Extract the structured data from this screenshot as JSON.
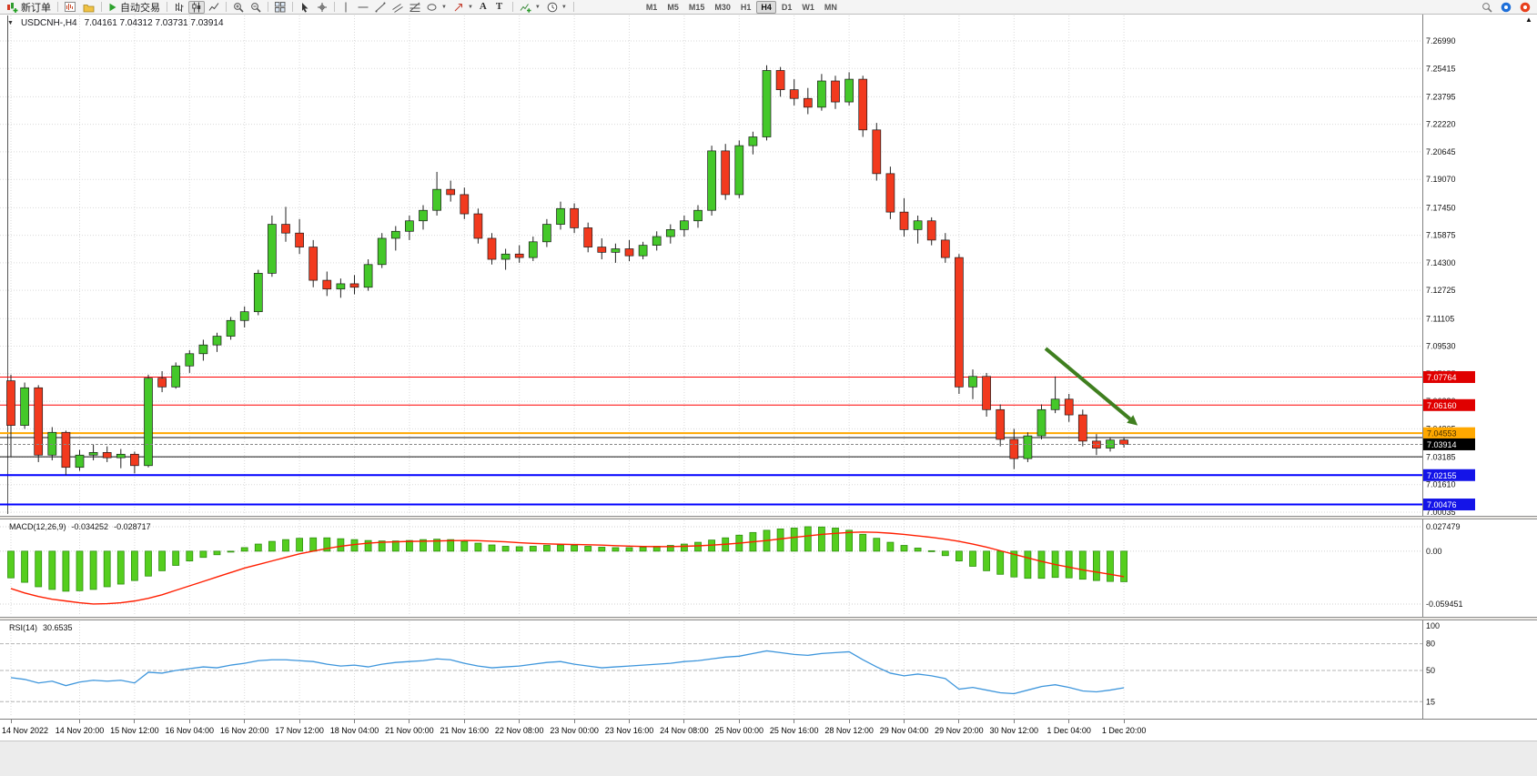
{
  "toolbar": {
    "new_order_label": "新订单",
    "autotrading_label": "自动交易",
    "text_tool_label": "A",
    "label_tool_label": "T",
    "timeframes": [
      "M1",
      "M5",
      "M15",
      "M30",
      "H1",
      "H4",
      "D1",
      "W1",
      "MN"
    ],
    "active_timeframe": "H4"
  },
  "chart": {
    "title": "USDCNH-,H4",
    "ohlc": "7.04161 7.04312 7.03731 7.03914"
  },
  "indicators": {
    "macd": {
      "label": "MACD(12,26,9)",
      "value_main": "-0.034252",
      "value_signal": "-0.028717"
    },
    "rsi": {
      "label": "RSI(14)",
      "value": "30.6535"
    }
  },
  "chart_data": {
    "type": "candlestick",
    "symbol": "USDCNH-",
    "timeframe": "H4",
    "ohlc_current": {
      "open": 7.04161,
      "high": 7.04312,
      "low": 7.03731,
      "close": 7.03914
    },
    "price_axis_labels": [
      "7.26990",
      "7.25415",
      "7.23795",
      "7.22220",
      "7.20645",
      "7.19070",
      "7.17450",
      "7.15875",
      "7.14300",
      "7.12725",
      "7.11105",
      "7.09530",
      "7.07955",
      "7.06380",
      "7.04805",
      "7.03185",
      "7.01610",
      "7.00035"
    ],
    "candles": [
      [
        7.0755,
        7.079,
        7.032,
        7.05
      ],
      [
        7.05,
        7.0745,
        7.048,
        7.0715
      ],
      [
        7.0715,
        7.073,
        7.029,
        7.033
      ],
      [
        7.033,
        7.049,
        7.03,
        7.046
      ],
      [
        7.046,
        7.047,
        7.0215,
        7.026
      ],
      [
        7.026,
        7.036,
        7.024,
        7.033
      ],
      [
        7.033,
        7.039,
        7.03,
        7.0345
      ],
      [
        7.0345,
        7.038,
        7.029,
        7.0315
      ],
      [
        7.0315,
        7.0365,
        7.0255,
        7.0335
      ],
      [
        7.0335,
        7.035,
        7.0225,
        7.027
      ],
      [
        7.027,
        7.079,
        7.026,
        7.077
      ],
      [
        7.077,
        7.081,
        7.069,
        7.072
      ],
      [
        7.072,
        7.086,
        7.071,
        7.084
      ],
      [
        7.084,
        7.093,
        7.08,
        7.091
      ],
      [
        7.091,
        7.099,
        7.087,
        7.096
      ],
      [
        7.096,
        7.103,
        7.092,
        7.101
      ],
      [
        7.101,
        7.112,
        7.099,
        7.11
      ],
      [
        7.11,
        7.118,
        7.106,
        7.115
      ],
      [
        7.115,
        7.139,
        7.113,
        7.137
      ],
      [
        7.137,
        7.17,
        7.135,
        7.165
      ],
      [
        7.165,
        7.175,
        7.155,
        7.16
      ],
      [
        7.16,
        7.168,
        7.148,
        7.152
      ],
      [
        7.152,
        7.156,
        7.129,
        7.133
      ],
      [
        7.133,
        7.138,
        7.124,
        7.128
      ],
      [
        7.128,
        7.134,
        7.123,
        7.131
      ],
      [
        7.131,
        7.136,
        7.125,
        7.129
      ],
      [
        7.129,
        7.145,
        7.127,
        7.142
      ],
      [
        7.142,
        7.16,
        7.14,
        7.157
      ],
      [
        7.157,
        7.164,
        7.15,
        7.161
      ],
      [
        7.161,
        7.17,
        7.156,
        7.167
      ],
      [
        7.167,
        7.176,
        7.162,
        7.173
      ],
      [
        7.173,
        7.195,
        7.17,
        7.185
      ],
      [
        7.185,
        7.19,
        7.178,
        7.182
      ],
      [
        7.182,
        7.186,
        7.168,
        7.171
      ],
      [
        7.171,
        7.174,
        7.154,
        7.157
      ],
      [
        7.157,
        7.16,
        7.142,
        7.145
      ],
      [
        7.145,
        7.151,
        7.139,
        7.148
      ],
      [
        7.148,
        7.153,
        7.143,
        7.146
      ],
      [
        7.146,
        7.158,
        7.144,
        7.155
      ],
      [
        7.155,
        7.168,
        7.152,
        7.165
      ],
      [
        7.165,
        7.178,
        7.162,
        7.174
      ],
      [
        7.174,
        7.177,
        7.16,
        7.163
      ],
      [
        7.163,
        7.166,
        7.149,
        7.152
      ],
      [
        7.152,
        7.157,
        7.145,
        7.149
      ],
      [
        7.149,
        7.154,
        7.143,
        7.151
      ],
      [
        7.151,
        7.156,
        7.144,
        7.147
      ],
      [
        7.147,
        7.155,
        7.145,
        7.153
      ],
      [
        7.153,
        7.161,
        7.15,
        7.158
      ],
      [
        7.158,
        7.165,
        7.154,
        7.162
      ],
      [
        7.162,
        7.17,
        7.158,
        7.167
      ],
      [
        7.167,
        7.176,
        7.163,
        7.173
      ],
      [
        7.173,
        7.21,
        7.17,
        7.207
      ],
      [
        7.207,
        7.211,
        7.179,
        7.182
      ],
      [
        7.182,
        7.213,
        7.18,
        7.21
      ],
      [
        7.21,
        7.218,
        7.205,
        7.215
      ],
      [
        7.215,
        7.256,
        7.213,
        7.253
      ],
      [
        7.253,
        7.255,
        7.238,
        7.242
      ],
      [
        7.242,
        7.248,
        7.233,
        7.237
      ],
      [
        7.237,
        7.243,
        7.228,
        7.232
      ],
      [
        7.232,
        7.251,
        7.23,
        7.247
      ],
      [
        7.247,
        7.25,
        7.231,
        7.235
      ],
      [
        7.235,
        7.252,
        7.233,
        7.248
      ],
      [
        7.248,
        7.25,
        7.215,
        7.219
      ],
      [
        7.219,
        7.223,
        7.19,
        7.194
      ],
      [
        7.194,
        7.198,
        7.168,
        7.172
      ],
      [
        7.172,
        7.18,
        7.158,
        7.162
      ],
      [
        7.162,
        7.17,
        7.154,
        7.167
      ],
      [
        7.167,
        7.169,
        7.153,
        7.156
      ],
      [
        7.156,
        7.16,
        7.143,
        7.146
      ],
      [
        7.146,
        7.148,
        7.068,
        7.072
      ],
      [
        7.072,
        7.082,
        7.065,
        7.078
      ],
      [
        7.078,
        7.08,
        7.055,
        7.059
      ],
      [
        7.059,
        7.062,
        7.038,
        7.042
      ],
      [
        7.042,
        7.048,
        7.025,
        7.031
      ],
      [
        7.031,
        7.046,
        7.029,
        7.044
      ],
      [
        7.044,
        7.062,
        7.042,
        7.059
      ],
      [
        7.059,
        7.078,
        7.057,
        7.065
      ],
      [
        7.065,
        7.068,
        7.052,
        7.056
      ],
      [
        7.056,
        7.059,
        7.038,
        7.041
      ],
      [
        7.041,
        7.045,
        7.033,
        7.037
      ],
      [
        7.037,
        7.043,
        7.035,
        7.0416
      ],
      [
        7.04161,
        7.04312,
        7.03731,
        7.03914
      ]
    ],
    "time_labels": [
      {
        "i": 0,
        "t": "14 Nov 2022"
      },
      {
        "i": 5,
        "t": "14 Nov 20:00"
      },
      {
        "i": 9,
        "t": "15 Nov 12:00"
      },
      {
        "i": 13,
        "t": "16 Nov 04:00"
      },
      {
        "i": 17,
        "t": "16 Nov 20:00"
      },
      {
        "i": 21,
        "t": "17 Nov 12:00"
      },
      {
        "i": 25,
        "t": "18 Nov 04:00"
      },
      {
        "i": 29,
        "t": "21 Nov 00:00"
      },
      {
        "i": 33,
        "t": "21 Nov 16:00"
      },
      {
        "i": 37,
        "t": "22 Nov 08:00"
      },
      {
        "i": 41,
        "t": "23 Nov 00:00"
      },
      {
        "i": 45,
        "t": "23 Nov 16:00"
      },
      {
        "i": 49,
        "t": "24 Nov 08:00"
      },
      {
        "i": 53,
        "t": "25 Nov 00:00"
      },
      {
        "i": 57,
        "t": "25 Nov 16:00"
      },
      {
        "i": 61,
        "t": "28 Nov 12:00"
      },
      {
        "i": 65,
        "t": "29 Nov 04:00"
      },
      {
        "i": 69,
        "t": "29 Nov 20:00"
      },
      {
        "i": 73,
        "t": "30 Nov 12:00"
      },
      {
        "i": 77,
        "t": "1 Dec 04:00"
      },
      {
        "i": 81,
        "t": "1 Dec 20:00"
      }
    ],
    "hlines": [
      {
        "price": 7.07764,
        "color": "#FF0000",
        "width": 1,
        "label": "7.07764",
        "label_bg": "#E00000",
        "label_fg": "#FFFFFF"
      },
      {
        "price": 7.0616,
        "color": "#FF0000",
        "width": 1,
        "label": "7.06160",
        "label_bg": "#E00000",
        "label_fg": "#FFFFFF"
      },
      {
        "price": 7.04553,
        "color": "#FFA800",
        "width": 2,
        "label": "7.04553",
        "label_bg": "#FFA800",
        "label_fg": "#4A3000"
      },
      {
        "price": 7.043,
        "color": "#111111",
        "width": 1
      },
      {
        "price": 7.032,
        "color": "#111111",
        "width": 1
      },
      {
        "price": 7.02155,
        "color": "#0000FF",
        "width": 2,
        "label": "7.02155",
        "label_bg": "#1414E8",
        "label_fg": "#FFFFFF"
      },
      {
        "price": 7.00476,
        "color": "#0000FF",
        "width": 2,
        "label": "7.00476",
        "label_bg": "#1414E8",
        "label_fg": "#FFFFFF"
      }
    ],
    "bid_line": {
      "price": 7.03914,
      "label": "7.03914",
      "label_bg": "#000000",
      "label_fg": "#FFFFFF"
    },
    "arrow": {
      "from_index": 75.3,
      "from_price": 7.094,
      "to_index": 82,
      "to_price": 7.05,
      "color": "#3F7F1F"
    },
    "macd": {
      "main": [
        -0.03,
        -0.035,
        -0.04,
        -0.043,
        -0.045,
        -0.0445,
        -0.043,
        -0.04,
        -0.037,
        -0.033,
        -0.028,
        -0.022,
        -0.016,
        -0.011,
        -0.007,
        -0.004,
        0.0,
        0.004,
        0.008,
        0.011,
        0.013,
        0.0145,
        0.015,
        0.015,
        0.014,
        0.013,
        0.012,
        0.0115,
        0.0115,
        0.012,
        0.013,
        0.0135,
        0.013,
        0.011,
        0.009,
        0.007,
        0.0055,
        0.005,
        0.0055,
        0.0065,
        0.007,
        0.0065,
        0.0055,
        0.0045,
        0.004,
        0.004,
        0.0045,
        0.0055,
        0.0065,
        0.008,
        0.01,
        0.0125,
        0.015,
        0.018,
        0.021,
        0.0235,
        0.025,
        0.026,
        0.0275,
        0.0272,
        0.026,
        0.0235,
        0.019,
        0.0145,
        0.01,
        0.0065,
        0.0035,
        0.0005,
        -0.005,
        -0.011,
        -0.017,
        -0.022,
        -0.026,
        -0.029,
        -0.0305,
        -0.0305,
        -0.0295,
        -0.03,
        -0.0315,
        -0.033,
        -0.034,
        -0.0343
      ],
      "signal": [
        -0.042,
        -0.047,
        -0.051,
        -0.054,
        -0.056,
        -0.058,
        -0.0594,
        -0.059,
        -0.058,
        -0.056,
        -0.053,
        -0.049,
        -0.044,
        -0.039,
        -0.034,
        -0.029,
        -0.024,
        -0.019,
        -0.015,
        -0.011,
        -0.007,
        -0.003,
        0.0,
        0.003,
        0.0055,
        0.0075,
        0.009,
        0.01,
        0.0105,
        0.011,
        0.0112,
        0.0115,
        0.0118,
        0.012,
        0.0118,
        0.0112,
        0.0105,
        0.0095,
        0.0088,
        0.0082,
        0.0078,
        0.0075,
        0.0072,
        0.0068,
        0.0062,
        0.0057,
        0.0053,
        0.0051,
        0.0052,
        0.0055,
        0.006,
        0.0068,
        0.0078,
        0.009,
        0.0105,
        0.012,
        0.0138,
        0.0155,
        0.0172,
        0.0188,
        0.02,
        0.021,
        0.0215,
        0.0212,
        0.0202,
        0.0188,
        0.0172,
        0.0155,
        0.0135,
        0.011,
        0.008,
        0.0045,
        0.0005,
        -0.0035,
        -0.0075,
        -0.0115,
        -0.015,
        -0.018,
        -0.021,
        -0.0235,
        -0.026,
        -0.0287
      ],
      "axis_labels": [
        "0.027479",
        "0.00",
        "-0.059451"
      ],
      "axis_values": [
        0.027479,
        0,
        -0.059451
      ]
    },
    "rsi": {
      "values": [
        42,
        40,
        36,
        38,
        33,
        37,
        39,
        38,
        39,
        36,
        48,
        47,
        50,
        52,
        54,
        53,
        56,
        58,
        61,
        62,
        62,
        61,
        60,
        57,
        55,
        56,
        54,
        57,
        59,
        60,
        61,
        63,
        62,
        58,
        55,
        53,
        54,
        55,
        57,
        59,
        60,
        57,
        55,
        53,
        54,
        55,
        56,
        57,
        58,
        60,
        61,
        63,
        65,
        66,
        69,
        72,
        70,
        68,
        67,
        69,
        70,
        71,
        62,
        54,
        47,
        44,
        46,
        44,
        41,
        29,
        31,
        28,
        25,
        24,
        28,
        32,
        34,
        31,
        27,
        26,
        28,
        30.65
      ],
      "levels": [
        80,
        50,
        15
      ],
      "axis_labels": [
        "100",
        "80",
        "50",
        "15"
      ],
      "axis_values": [
        100,
        80,
        50,
        15
      ],
      "current": 30.6535
    }
  }
}
